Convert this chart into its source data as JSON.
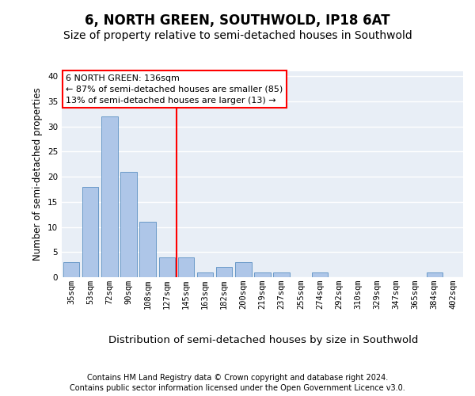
{
  "title": "6, NORTH GREEN, SOUTHWOLD, IP18 6AT",
  "subtitle": "Size of property relative to semi-detached houses in Southwold",
  "xlabel": "Distribution of semi-detached houses by size in Southwold",
  "ylabel": "Number of semi-detached properties",
  "categories": [
    "35sqm",
    "53sqm",
    "72sqm",
    "90sqm",
    "108sqm",
    "127sqm",
    "145sqm",
    "163sqm",
    "182sqm",
    "200sqm",
    "219sqm",
    "237sqm",
    "255sqm",
    "274sqm",
    "292sqm",
    "310sqm",
    "329sqm",
    "347sqm",
    "365sqm",
    "384sqm",
    "402sqm"
  ],
  "values": [
    3,
    18,
    32,
    21,
    11,
    4,
    4,
    1,
    2,
    3,
    1,
    1,
    0,
    1,
    0,
    0,
    0,
    0,
    0,
    1,
    0
  ],
  "bar_color": "#aec6e8",
  "bar_edge_color": "#5a8fc2",
  "background_color": "#e8eef6",
  "grid_color": "#ffffff",
  "annotation_line1": "6 NORTH GREEN: 136sqm",
  "annotation_line2": "← 87% of semi-detached houses are smaller (85)",
  "annotation_line3": "13% of semi-detached houses are larger (13) →",
  "vline_color": "red",
  "vline_x": 5.5,
  "ylim": [
    0,
    41
  ],
  "yticks": [
    0,
    5,
    10,
    15,
    20,
    25,
    30,
    35,
    40
  ],
  "footer1": "Contains HM Land Registry data © Crown copyright and database right 2024.",
  "footer2": "Contains public sector information licensed under the Open Government Licence v3.0.",
  "title_fontsize": 12,
  "subtitle_fontsize": 10,
  "xlabel_fontsize": 9.5,
  "ylabel_fontsize": 8.5,
  "tick_fontsize": 7.5,
  "footer_fontsize": 7,
  "ann_fontsize": 8
}
